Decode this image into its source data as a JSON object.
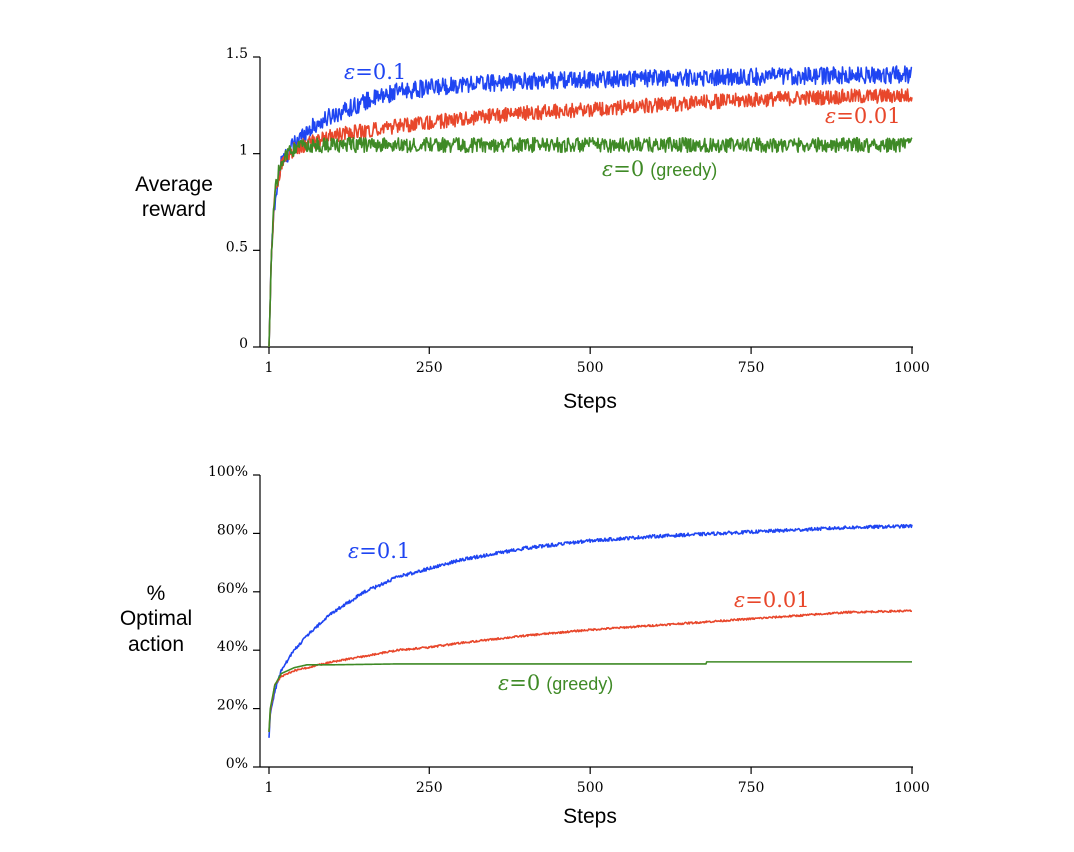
{
  "chart_data": [
    {
      "type": "line",
      "xlabel": "Steps",
      "ylabel": [
        "Average",
        "reward"
      ],
      "xlim": [
        1,
        1000
      ],
      "ylim": [
        0,
        1.5
      ],
      "x_ticks": [
        1,
        250,
        500,
        750,
        1000
      ],
      "x_tick_labels": [
        "1",
        "250",
        "500",
        "750",
        "1000"
      ],
      "y_ticks": [
        0,
        0.5,
        1,
        1.5
      ],
      "y_tick_labels": [
        "0",
        "0.5",
        "1",
        "1.5"
      ],
      "series": [
        {
          "name": "ε=0.1",
          "symbol": "ε",
          "eq": "=",
          "value": "0.1",
          "suffix": "",
          "color": "#1f45f2",
          "x": [
            1,
            5,
            10,
            20,
            40,
            60,
            100,
            150,
            200,
            250,
            300,
            400,
            500,
            600,
            700,
            800,
            900,
            1000
          ],
          "y": [
            0.0,
            0.5,
            0.75,
            0.95,
            1.05,
            1.12,
            1.2,
            1.27,
            1.32,
            1.34,
            1.36,
            1.375,
            1.385,
            1.39,
            1.395,
            1.4,
            1.405,
            1.41
          ],
          "noise": 0.028
        },
        {
          "name": "ε=0.01",
          "symbol": "ε",
          "eq": "=",
          "value": "0.01",
          "suffix": "",
          "color": "#e8472b",
          "x": [
            1,
            5,
            10,
            20,
            40,
            60,
            100,
            150,
            200,
            250,
            300,
            400,
            500,
            600,
            700,
            800,
            900,
            1000
          ],
          "y": [
            0.0,
            0.5,
            0.78,
            0.95,
            1.02,
            1.05,
            1.09,
            1.12,
            1.14,
            1.16,
            1.18,
            1.21,
            1.23,
            1.25,
            1.27,
            1.285,
            1.295,
            1.3
          ],
          "noise": 0.024
        },
        {
          "name": "ε=0 (greedy)",
          "symbol": "ε",
          "eq": "=",
          "value": "0",
          "suffix": "(greedy)",
          "color": "#3f8a26",
          "x": [
            1,
            5,
            10,
            20,
            40,
            60,
            100,
            200,
            300,
            500,
            700,
            1000
          ],
          "y": [
            0.0,
            0.5,
            0.8,
            0.97,
            1.03,
            1.04,
            1.045,
            1.045,
            1.045,
            1.045,
            1.045,
            1.045
          ],
          "noise": 0.024
        }
      ]
    },
    {
      "type": "line",
      "xlabel": "Steps",
      "ylabel": [
        "%",
        "Optimal",
        "action"
      ],
      "xlim": [
        1,
        1000
      ],
      "ylim": [
        0,
        100
      ],
      "x_ticks": [
        1,
        250,
        500,
        750,
        1000
      ],
      "x_tick_labels": [
        "1",
        "250",
        "500",
        "750",
        "1000"
      ],
      "y_ticks": [
        0,
        20,
        40,
        60,
        80,
        100
      ],
      "y_tick_labels": [
        "0%",
        "20%",
        "40%",
        "60%",
        "80%",
        "100%"
      ],
      "series": [
        {
          "name": "ε=0.1",
          "symbol": "ε",
          "eq": "=",
          "value": "0.1",
          "suffix": "",
          "color": "#1f45f2",
          "x": [
            1,
            3,
            10,
            20,
            40,
            60,
            100,
            150,
            200,
            250,
            300,
            400,
            500,
            600,
            700,
            800,
            900,
            1000
          ],
          "y": [
            10,
            18,
            26,
            33,
            40,
            45,
            53,
            60,
            65,
            68,
            71,
            75,
            77.5,
            79,
            80,
            81,
            82,
            82.5
          ],
          "noise": 0.35
        },
        {
          "name": "ε=0.01",
          "symbol": "ε",
          "eq": "=",
          "value": "0.01",
          "suffix": "",
          "color": "#e8472b",
          "x": [
            1,
            3,
            10,
            20,
            40,
            60,
            100,
            150,
            200,
            250,
            300,
            400,
            500,
            600,
            700,
            800,
            900,
            1000
          ],
          "y": [
            12,
            19,
            28,
            31,
            33,
            34,
            36,
            38,
            40,
            41,
            42.5,
            45,
            47,
            48.5,
            50,
            51.5,
            53,
            53.5
          ],
          "noise": 0.2
        },
        {
          "name": "ε=0 (greedy)",
          "symbol": "ε",
          "eq": "=",
          "value": "0",
          "suffix": "(greedy)",
          "color": "#3f8a26",
          "x": [
            1,
            3,
            10,
            20,
            40,
            60,
            100,
            200,
            300,
            400,
            500,
            600,
            680,
            681,
            1000
          ],
          "y": [
            12,
            20,
            28,
            32,
            34,
            35,
            35,
            35.3,
            35.3,
            35.3,
            35.3,
            35.3,
            35.3,
            36,
            36
          ],
          "noise": 0
        }
      ]
    }
  ]
}
